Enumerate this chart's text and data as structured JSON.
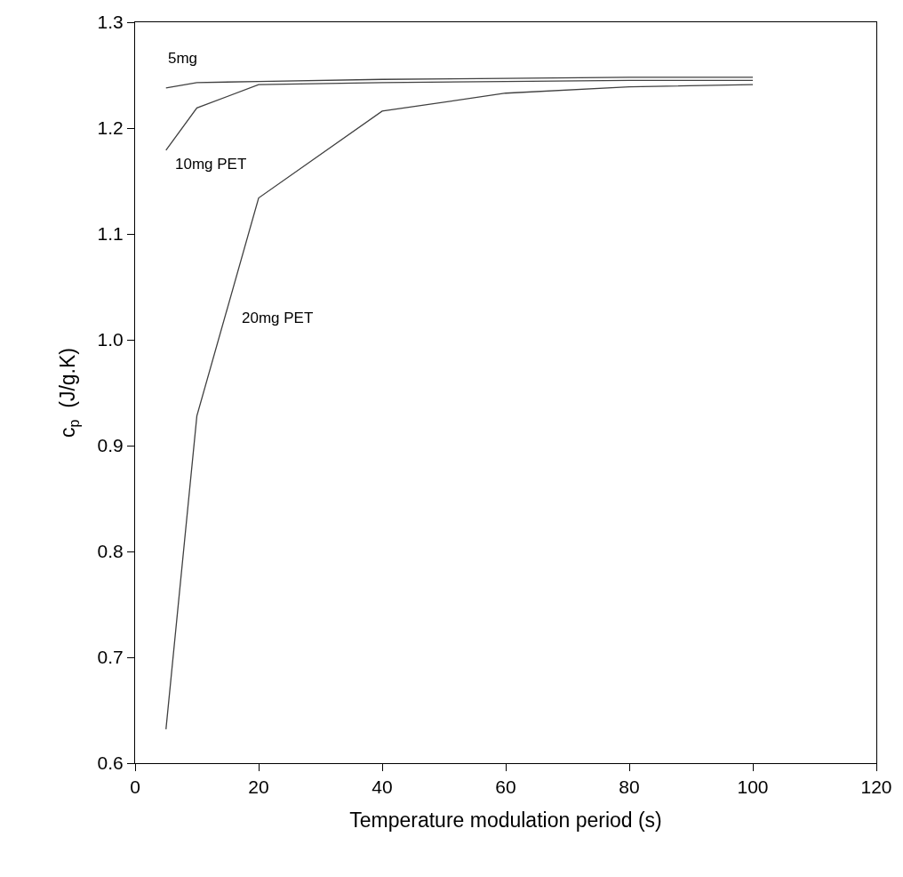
{
  "chart_data": {
    "type": "line",
    "xlabel": "Temperature modulation period (s)",
    "ylabel": "c$_{p}$  (J/g.K)",
    "xlim": [
      0,
      120
    ],
    "xticks": [
      0,
      20,
      40,
      60,
      80,
      100,
      120
    ],
    "ylim": [
      0.6,
      1.3
    ],
    "yticks": [
      0.6,
      0.7,
      0.8,
      0.9,
      {
        "value": 1.0,
        "label": "1.0"
      },
      1.1,
      1.2,
      1.3
    ],
    "legend": false,
    "marker": "none",
    "line_style": "solid",
    "series": [
      {
        "name": "5mg",
        "color": "#404040",
        "x": [
          5,
          10,
          20,
          40,
          60,
          80,
          100
        ],
        "values": [
          1.238,
          1.243,
          1.244,
          1.246,
          1.247,
          1.248,
          1.248
        ]
      },
      {
        "name": "10mg PET",
        "color": "#404040",
        "x": [
          5,
          10,
          20,
          40,
          60,
          80,
          100
        ],
        "values": [
          1.179,
          1.219,
          1.241,
          1.243,
          1.244,
          1.245,
          1.245
        ]
      },
      {
        "name": "20mg PET",
        "color": "#404040",
        "x": [
          5,
          10,
          20,
          40,
          60,
          80,
          100
        ],
        "values": [
          0.632,
          0.928,
          1.134,
          1.216,
          1.233,
          1.239,
          1.241
        ]
      }
    ]
  }
}
